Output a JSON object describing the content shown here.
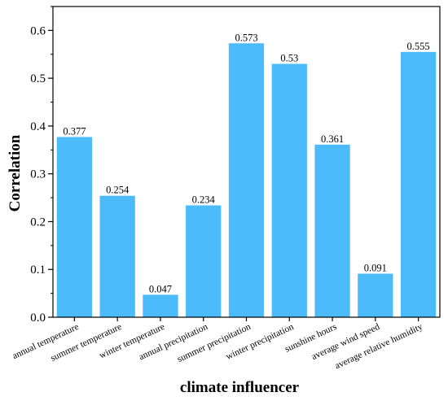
{
  "chart_data": {
    "type": "bar",
    "categories": [
      "annual temperature",
      "summer temperature",
      "winter temperature",
      "annual precipitation",
      "summer precipitation",
      "winter precipitation",
      "sunshine hours",
      "average wind speed",
      "average relative humidity"
    ],
    "values": [
      0.377,
      0.254,
      0.047,
      0.234,
      0.573,
      0.53,
      0.361,
      0.091,
      0.555
    ],
    "data_labels": [
      "0.377",
      "0.254",
      "0.047",
      "0.234",
      "0.573",
      "0.53",
      "0.361",
      "0.091",
      "0.555"
    ],
    "y_ticks": [
      "0.0",
      "0.1",
      "0.2",
      "0.3",
      "0.4",
      "0.5",
      "0.6"
    ],
    "title": "",
    "xlabel": "climate influencer",
    "ylabel": "Correlation",
    "ylim": [
      0,
      0.65
    ],
    "grid": false,
    "bar_color": "#4cbbfb",
    "axis_color": "#000000"
  }
}
